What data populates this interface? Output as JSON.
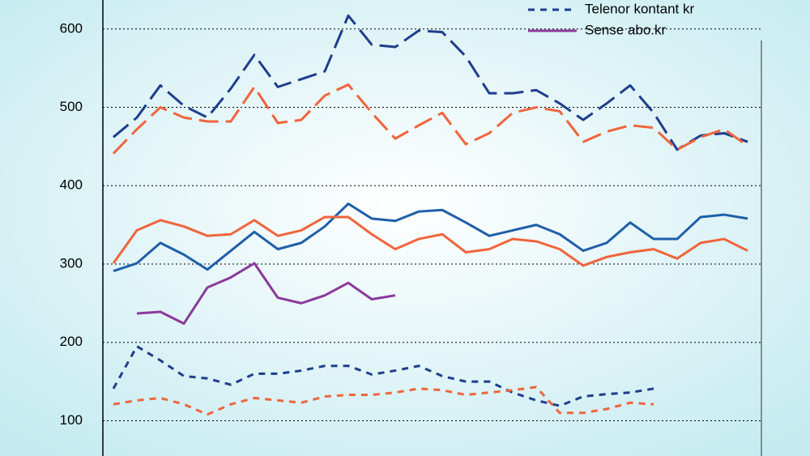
{
  "chart_data": {
    "type": "line",
    "categories": [
      null,
      null,
      null,
      null,
      null,
      null,
      null,
      null,
      null,
      null,
      null,
      null,
      null,
      null,
      null,
      null,
      null,
      null,
      null,
      null,
      null,
      null,
      null,
      null,
      null,
      null,
      null,
      null
    ],
    "ylim": [
      55,
      637
    ],
    "yticks": [
      100,
      200,
      300,
      400,
      500,
      600
    ],
    "grid": true,
    "legend": "upper right",
    "series": [
      {
        "color": "#1f3e8c",
        "dash": "long",
        "values": [
          462,
          487,
          528,
          502,
          487,
          524,
          567,
          526,
          536,
          546,
          617,
          580,
          577,
          598,
          596,
          565,
          518,
          518,
          522,
          505,
          484,
          505,
          528,
          493,
          446,
          464,
          467,
          456
        ]
      },
      {
        "color": "#f0643c",
        "dash": "long",
        "values": [
          441,
          472,
          500,
          487,
          482,
          482,
          526,
          480,
          484,
          515,
          529,
          493,
          460,
          477,
          493,
          453,
          467,
          493,
          500,
          495,
          456,
          469,
          477,
          474,
          446,
          462,
          472,
          451
        ]
      },
      {
        "color": "#1f5fa8",
        "dash": "solid",
        "values": [
          291,
          301,
          327,
          312,
          293,
          317,
          341,
          319,
          327,
          348,
          377,
          358,
          355,
          367,
          369,
          353,
          336,
          343,
          350,
          338,
          317,
          327,
          353,
          332,
          332,
          360,
          363,
          358
        ]
      },
      {
        "color": "#f0643c",
        "dash": "solid",
        "values": [
          301,
          343,
          356,
          348,
          336,
          338,
          356,
          336,
          343,
          360,
          360,
          338,
          319,
          332,
          338,
          315,
          319,
          332,
          329,
          319,
          298,
          309,
          315,
          319,
          307,
          327,
          332,
          317
        ]
      },
      {
        "name": "Telenor kontant kr",
        "color": "#1f3e8c",
        "dash": "short",
        "values": [
          141,
          195,
          177,
          157,
          154,
          146,
          160,
          160,
          164,
          170,
          170,
          159,
          164,
          170,
          157,
          150,
          150,
          136,
          126,
          119,
          131,
          134,
          136,
          141,
          null,
          null,
          null,
          null
        ]
      },
      {
        "name": "Sense abo.kr",
        "color": "#8b3a9a",
        "dash": "solid",
        "values": [
          null,
          237,
          239,
          224,
          270,
          283,
          301,
          257,
          250,
          260,
          276,
          255,
          260,
          null,
          null,
          null,
          null,
          null,
          null,
          null,
          null,
          null,
          null,
          null,
          null,
          null,
          null,
          null
        ]
      },
      {
        "color": "#f0643c",
        "dash": "short",
        "values": [
          121,
          126,
          129,
          121,
          108,
          121,
          129,
          126,
          123,
          131,
          133,
          133,
          136,
          141,
          139,
          133,
          136,
          139,
          143,
          110,
          110,
          115,
          123,
          121,
          null,
          null,
          null,
          null
        ]
      }
    ]
  }
}
